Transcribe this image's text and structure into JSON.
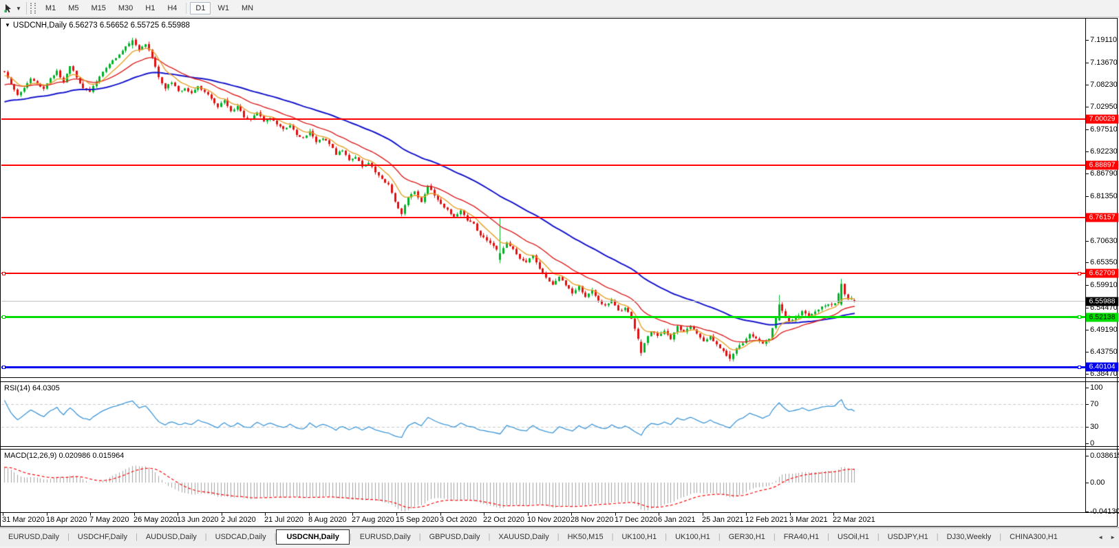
{
  "toolbar": {
    "dropdown_icon": "▼",
    "timeframes": [
      "M1",
      "M5",
      "M15",
      "M30",
      "H1",
      "H4",
      "D1",
      "W1",
      "MN"
    ],
    "active_timeframe": "D1",
    "group_break_before": "D1"
  },
  "chart": {
    "collapse_icon": "▼",
    "title_symbol": "USDCNH,Daily",
    "title_ohlc": "6.56273 6.56652 6.55725 6.55988",
    "price_ticks": [
      "7.19110",
      "7.13670",
      "7.08230",
      "7.02950",
      "6.97510",
      "6.92230",
      "6.86790",
      "6.81350",
      "6.70630",
      "6.65350",
      "6.59910",
      "6.54470",
      "6.49190",
      "6.43750",
      "6.38470"
    ],
    "hlines": [
      {
        "price": 7.00029,
        "label": "7.00029",
        "color": "#ff0000",
        "text_color": "#ffffff",
        "thickness": 2,
        "handles": false
      },
      {
        "price": 6.88897,
        "label": "6.88897",
        "color": "#ff0000",
        "text_color": "#ffffff",
        "thickness": 2,
        "handles": false
      },
      {
        "price": 6.76157,
        "label": "6.76157",
        "color": "#ff0000",
        "text_color": "#ffffff",
        "thickness": 2,
        "handles": false
      },
      {
        "price": 6.62709,
        "label": "6.62709",
        "color": "#ff0000",
        "text_color": "#ffffff",
        "thickness": 2,
        "handles": true
      },
      {
        "price": 6.52138,
        "label": "6.52138",
        "color": "#00dd00",
        "text_color": "#000000",
        "thickness": 3,
        "handles": true
      },
      {
        "price": 6.40104,
        "label": "6.40104",
        "color": "#0000ee",
        "text_color": "#ffffff",
        "thickness": 3,
        "handles": true
      }
    ],
    "current_price": {
      "value": 6.55988,
      "label": "6.55988",
      "line_color": "#c2c2c2",
      "badge_bg": "#000000",
      "badge_text": "#ffffff"
    },
    "candle_up_color": "#00b327",
    "candle_down_color": "#e01010",
    "moving_averages": [
      {
        "period": 55,
        "color": "#1414cc",
        "name": "ma-slow-blue",
        "width": 2
      },
      {
        "period": 21,
        "color": "#dd2020",
        "name": "ma-mid-red",
        "width": 1.4
      },
      {
        "period": 8,
        "color": "#e6a028",
        "name": "ma-fast-orange",
        "width": 1.4
      }
    ]
  },
  "rsi": {
    "label": "RSI(14)",
    "value": "64.0305",
    "line_color": "#3d96d8",
    "level_line_color": "#c8c8c8",
    "ticks": [
      {
        "v": 100,
        "label": "100"
      },
      {
        "v": 70,
        "label": "70"
      },
      {
        "v": 30,
        "label": "30"
      },
      {
        "v": 0,
        "label": "0"
      }
    ],
    "levels": [
      70,
      30
    ]
  },
  "macd": {
    "label": "MACD(12,26,9)",
    "values": "0.020986 0.015964",
    "bar_color": "#a2a2a2",
    "signal_color": "#ff0000",
    "ticks": [
      {
        "v": 0.038615,
        "label": "0.038615"
      },
      {
        "v": 0,
        "label": "0.00"
      },
      {
        "v": -0.041306,
        "label": "-0.041306"
      }
    ]
  },
  "dates": [
    "31 Mar 2020",
    "18 Apr 2020",
    "7 May 2020",
    "26 May 2020",
    "13 Jun 2020",
    "2 Jul 2020",
    "21 Jul 2020",
    "8 Aug 2020",
    "27 Aug 2020",
    "15 Sep 2020",
    "3 Oct 2020",
    "22 Oct 2020",
    "10 Nov 2020",
    "28 Nov 2020",
    "17 Dec 2020",
    "6 Jan 2021",
    "25 Jan 2021",
    "12 Feb 2021",
    "3 Mar 2021",
    "22 Mar 2021"
  ],
  "tabs": {
    "items": [
      "EURUSD,Daily",
      "USDCHF,Daily",
      "AUDUSD,Daily",
      "USDCAD,Daily",
      "USDCNH,Daily",
      "EURUSD,Daily",
      "GBPUSD,Daily",
      "XAUUSD,Daily",
      "HK50,M15",
      "UK100,H1",
      "UK100,H1",
      "GER30,H1",
      "FRA40,H1",
      "USOil,H1",
      "USDJPY,H1",
      "DJ30,Weekly",
      "CHINA300,H1"
    ],
    "active_index": 4,
    "scroll_left_icon": "◄",
    "scroll_right_icon": "►"
  },
  "chart_data": {
    "type": "candlestick",
    "symbol": "USDCNH",
    "timeframe": "Daily",
    "current_bar": {
      "open": 6.56273,
      "high": 6.56652,
      "low": 6.55725,
      "close": 6.55988
    },
    "visible_price_range": [
      6.376,
      7.241
    ],
    "num_candles": 260,
    "price_anchors": [
      [
        0,
        7.112
      ],
      [
        2,
        7.085
      ],
      [
        4,
        7.06
      ],
      [
        6,
        7.075
      ],
      [
        8,
        7.1
      ],
      [
        10,
        7.085
      ],
      [
        12,
        7.075
      ],
      [
        14,
        7.1
      ],
      [
        16,
        7.115
      ],
      [
        18,
        7.09
      ],
      [
        20,
        7.13
      ],
      [
        22,
        7.1
      ],
      [
        24,
        7.075
      ],
      [
        26,
        7.065
      ],
      [
        28,
        7.09
      ],
      [
        30,
        7.115
      ],
      [
        33,
        7.14
      ],
      [
        36,
        7.165
      ],
      [
        39,
        7.19
      ],
      [
        41,
        7.165
      ],
      [
        43,
        7.18
      ],
      [
        45,
        7.15
      ],
      [
        47,
        7.1
      ],
      [
        49,
        7.075
      ],
      [
        51,
        7.09
      ],
      [
        53,
        7.065
      ],
      [
        55,
        7.075
      ],
      [
        57,
        7.06
      ],
      [
        59,
        7.08
      ],
      [
        61,
        7.065
      ],
      [
        63,
        7.05
      ],
      [
        65,
        7.03
      ],
      [
        67,
        7.045
      ],
      [
        69,
        7.02
      ],
      [
        71,
        7.03
      ],
      [
        73,
        7.005
      ],
      [
        75,
        7.0
      ],
      [
        77,
        7.015
      ],
      [
        79,
        6.995
      ],
      [
        81,
        7.005
      ],
      [
        83,
        6.985
      ],
      [
        85,
        6.975
      ],
      [
        87,
        6.985
      ],
      [
        89,
        6.96
      ],
      [
        91,
        6.955
      ],
      [
        93,
        6.97
      ],
      [
        95,
        6.945
      ],
      [
        97,
        6.955
      ],
      [
        99,
        6.94
      ],
      [
        101,
        6.915
      ],
      [
        103,
        6.925
      ],
      [
        105,
        6.9
      ],
      [
        107,
        6.91
      ],
      [
        109,
        6.885
      ],
      [
        111,
        6.895
      ],
      [
        113,
        6.87
      ],
      [
        115,
        6.855
      ],
      [
        117,
        6.84
      ],
      [
        119,
        6.8
      ],
      [
        121,
        6.77
      ],
      [
        123,
        6.81
      ],
      [
        125,
        6.825
      ],
      [
        127,
        6.8
      ],
      [
        129,
        6.84
      ],
      [
        131,
        6.815
      ],
      [
        133,
        6.795
      ],
      [
        135,
        6.78
      ],
      [
        137,
        6.765
      ],
      [
        139,
        6.78
      ],
      [
        141,
        6.755
      ],
      [
        143,
        6.745
      ],
      [
        145,
        6.72
      ],
      [
        147,
        6.705
      ],
      [
        149,
        6.695
      ],
      [
        151,
        6.676
      ],
      [
        153,
        6.7
      ],
      [
        155,
        6.685
      ],
      [
        157,
        6.665
      ],
      [
        159,
        6.655
      ],
      [
        161,
        6.67
      ],
      [
        163,
        6.64
      ],
      [
        165,
        6.615
      ],
      [
        167,
        6.6
      ],
      [
        169,
        6.62
      ],
      [
        171,
        6.6
      ],
      [
        173,
        6.58
      ],
      [
        175,
        6.595
      ],
      [
        177,
        6.57
      ],
      [
        179,
        6.585
      ],
      [
        181,
        6.56
      ],
      [
        183,
        6.55
      ],
      [
        185,
        6.56
      ],
      [
        187,
        6.535
      ],
      [
        189,
        6.545
      ],
      [
        191,
        6.52
      ],
      [
        193,
        6.47
      ],
      [
        194,
        6.435
      ],
      [
        195,
        6.46
      ],
      [
        197,
        6.49
      ],
      [
        199,
        6.475
      ],
      [
        201,
        6.49
      ],
      [
        203,
        6.47
      ],
      [
        205,
        6.5
      ],
      [
        207,
        6.485
      ],
      [
        209,
        6.5
      ],
      [
        211,
        6.48
      ],
      [
        213,
        6.465
      ],
      [
        215,
        6.475
      ],
      [
        217,
        6.455
      ],
      [
        219,
        6.44
      ],
      [
        221,
        6.421
      ],
      [
        223,
        6.445
      ],
      [
        225,
        6.46
      ],
      [
        227,
        6.48
      ],
      [
        229,
        6.47
      ],
      [
        231,
        6.455
      ],
      [
        233,
        6.47
      ],
      [
        235,
        6.52
      ],
      [
        236,
        6.552
      ],
      [
        237,
        6.535
      ],
      [
        239,
        6.51
      ],
      [
        241,
        6.52
      ],
      [
        243,
        6.535
      ],
      [
        245,
        6.525
      ],
      [
        247,
        6.535
      ],
      [
        249,
        6.545
      ],
      [
        251,
        6.55
      ],
      [
        253,
        6.555
      ],
      [
        255,
        6.602
      ],
      [
        256,
        6.575
      ],
      [
        257,
        6.563
      ],
      [
        258,
        6.568
      ],
      [
        259,
        6.56
      ]
    ],
    "bar_overrides": [
      {
        "i": 39,
        "o": 7.178,
        "h": 7.196,
        "l": 7.17,
        "c": 7.19
      },
      {
        "i": 151,
        "o": 6.66,
        "h": 6.761,
        "l": 6.652,
        "c": 6.676
      },
      {
        "i": 194,
        "o": 6.462,
        "h": 6.468,
        "l": 6.428,
        "c": 6.435
      },
      {
        "i": 221,
        "o": 6.432,
        "h": 6.44,
        "l": 6.415,
        "c": 6.421
      },
      {
        "i": 236,
        "o": 6.514,
        "h": 6.575,
        "l": 6.512,
        "c": 6.552
      },
      {
        "i": 255,
        "o": 6.552,
        "h": 6.614,
        "l": 6.549,
        "c": 6.602
      },
      {
        "i": 259,
        "o": 6.56273,
        "h": 6.56652,
        "l": 6.55725,
        "c": 6.55988
      }
    ],
    "indicators": [
      "RSI(14) = 64.0305",
      "MACD(12,26,9) = 0.020986 / 0.015964"
    ]
  }
}
